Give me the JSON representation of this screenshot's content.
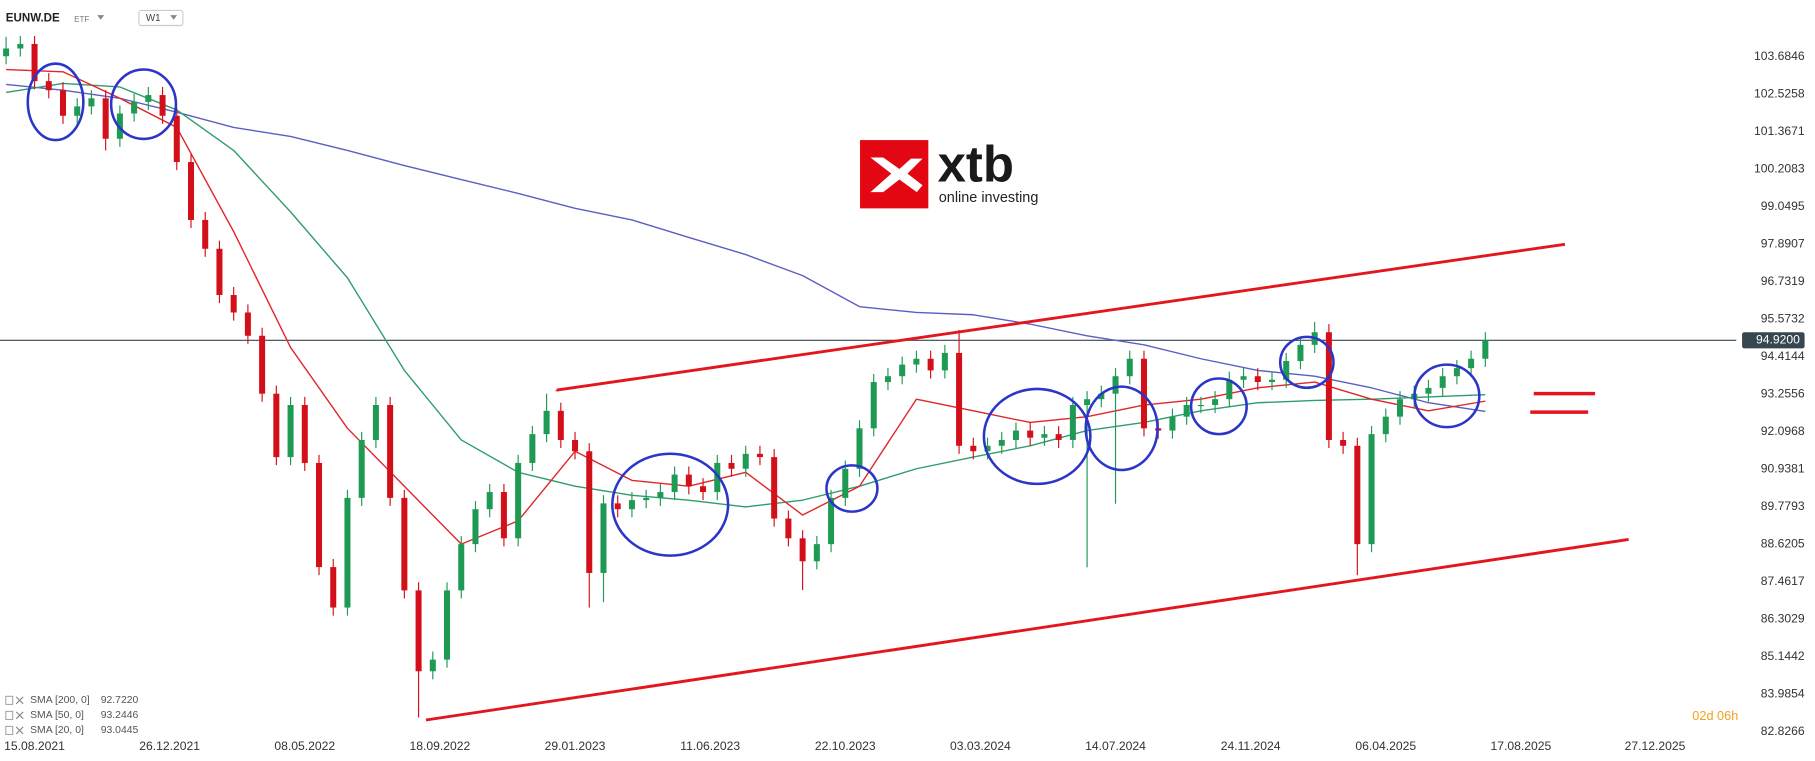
{
  "chart_data": {
    "type": "candlestick",
    "symbol": "EUNW.DE",
    "instrument_type": "ETF",
    "timeframe": "W1",
    "up_color": "#1e9a55",
    "down_color": "#d3101a",
    "x": [
      "18.07.2021",
      "01.08.2021",
      "15.08.2021",
      "29.08.2021",
      "12.09.2021",
      "26.09.2021",
      "10.10.2021",
      "24.10.2021",
      "07.11.2021",
      "21.11.2021",
      "05.12.2021",
      "19.12.2021",
      "02.01.2022",
      "16.01.2022",
      "30.01.2022",
      "13.02.2022",
      "27.02.2022",
      "13.03.2022",
      "27.03.2022",
      "10.04.2022",
      "24.04.2022",
      "08.05.2022",
      "22.05.2022",
      "05.06.2022",
      "19.06.2022",
      "03.07.2022",
      "17.07.2022",
      "31.07.2022",
      "14.08.2022",
      "28.08.2022",
      "11.09.2022",
      "25.09.2022",
      "09.10.2022",
      "23.10.2022",
      "06.11.2022",
      "20.11.2022",
      "04.12.2022",
      "18.12.2022",
      "01.01.2023",
      "15.01.2023",
      "29.01.2023",
      "12.02.2023",
      "26.02.2023",
      "12.03.2023",
      "26.03.2023",
      "09.04.2023",
      "23.04.2023",
      "07.05.2023",
      "21.05.2023",
      "04.06.2023",
      "18.06.2023",
      "02.07.2023",
      "16.07.2023",
      "30.07.2023",
      "13.08.2023",
      "27.08.2023",
      "10.09.2023",
      "24.09.2023",
      "08.10.2023",
      "22.10.2023",
      "05.11.2023",
      "19.11.2023",
      "03.12.2023",
      "17.12.2023",
      "31.12.2023",
      "14.01.2024",
      "28.01.2024",
      "11.02.2024",
      "25.02.2024",
      "10.03.2024",
      "24.03.2024",
      "07.04.2024",
      "21.04.2024",
      "05.05.2024",
      "19.05.2024",
      "02.06.2024",
      "16.06.2024",
      "30.06.2024",
      "14.07.2024",
      "28.07.2024",
      "11.08.2024",
      "25.08.2024",
      "08.09.2024",
      "22.09.2024",
      "06.10.2024",
      "20.10.2024",
      "03.11.2024",
      "17.11.2024",
      "01.12.2024",
      "15.12.2024",
      "29.12.2024",
      "12.01.2025",
      "26.01.2025",
      "09.02.2025",
      "23.02.2025",
      "09.03.2025",
      "23.03.2025",
      "06.04.2025",
      "20.04.2025",
      "04.05.2025",
      "18.05.2025",
      "01.06.2025",
      "15.06.2025",
      "29.06.2025",
      "13.07.2025"
    ],
    "open": [
      103.7,
      103.94,
      104.08,
      102.93,
      102.65,
      101.86,
      102.15,
      102.4,
      101.15,
      101.93,
      102.29,
      102.5,
      101.86,
      100.43,
      98.64,
      97.75,
      96.32,
      95.78,
      95.06,
      93.27,
      91.31,
      92.92,
      91.13,
      87.91,
      86.66,
      90.05,
      91.84,
      92.92,
      90.05,
      87.19,
      84.69,
      85.05,
      87.19,
      88.62,
      89.7,
      90.23,
      88.8,
      91.13,
      92.02,
      92.74,
      91.84,
      91.49,
      87.73,
      89.88,
      89.7,
      89.98,
      90.05,
      90.23,
      90.77,
      90.41,
      90.23,
      91.13,
      90.95,
      91.41,
      91.31,
      89.41,
      88.8,
      88.09,
      88.62,
      90.05,
      90.95,
      92.2,
      93.63,
      93.81,
      94.17,
      94.35,
      93.99,
      94.53,
      91.66,
      91.49,
      91.66,
      91.84,
      92.13,
      91.91,
      92.02,
      91.84,
      92.92,
      93.1,
      93.27,
      93.81,
      94.35,
      92.2,
      92.13,
      92.56,
      92.92,
      92.92,
      93.1,
      93.7,
      93.81,
      93.63,
      93.7,
      94.28,
      94.78,
      95.17,
      91.84,
      91.66,
      88.62,
      92.02,
      92.56,
      93.1,
      93.27,
      93.45,
      93.81,
      94.06,
      94.35
    ],
    "high": [
      104.3,
      104.33,
      104.33,
      103.18,
      102.9,
      102.4,
      102.65,
      102.65,
      102.18,
      102.54,
      102.75,
      102.75,
      102.11,
      100.68,
      98.89,
      98.0,
      96.57,
      96.03,
      95.31,
      93.52,
      93.17,
      93.17,
      91.38,
      88.16,
      90.3,
      92.09,
      93.17,
      93.17,
      90.3,
      87.44,
      85.3,
      87.44,
      88.87,
      89.95,
      90.48,
      90.48,
      91.38,
      92.27,
      93.27,
      92.99,
      92.09,
      91.74,
      90.13,
      90.13,
      90.23,
      90.3,
      90.48,
      91.02,
      91.02,
      90.66,
      91.38,
      91.38,
      91.66,
      91.66,
      91.56,
      89.66,
      89.05,
      88.87,
      90.3,
      91.2,
      92.45,
      93.88,
      94.06,
      94.42,
      94.6,
      94.6,
      94.78,
      95.24,
      91.91,
      91.91,
      92.09,
      92.38,
      92.38,
      92.27,
      92.27,
      93.17,
      93.35,
      93.52,
      94.06,
      94.6,
      94.6,
      92.45,
      92.81,
      93.17,
      93.17,
      93.35,
      93.95,
      94.06,
      94.06,
      93.95,
      94.53,
      95.03,
      95.49,
      95.42,
      92.09,
      91.91,
      92.27,
      92.81,
      93.35,
      93.52,
      93.7,
      94.06,
      94.31,
      94.6,
      95.17
    ],
    "low": [
      103.45,
      103.69,
      102.68,
      102.4,
      101.61,
      101.61,
      101.9,
      100.79,
      100.9,
      101.68,
      102.04,
      101.61,
      100.18,
      98.39,
      97.5,
      96.07,
      95.53,
      94.81,
      93.02,
      91.06,
      91.06,
      90.88,
      87.66,
      86.41,
      86.41,
      89.8,
      91.59,
      89.8,
      86.94,
      83.26,
      84.44,
      84.8,
      86.94,
      88.37,
      89.45,
      88.55,
      88.55,
      90.88,
      91.77,
      91.59,
      91.24,
      86.66,
      86.83,
      89.45,
      89.45,
      89.73,
      89.8,
      89.98,
      90.16,
      89.98,
      89.98,
      90.7,
      90.7,
      91.06,
      89.16,
      88.55,
      87.2,
      87.84,
      88.37,
      89.8,
      90.7,
      91.95,
      93.38,
      93.56,
      93.92,
      93.74,
      93.74,
      91.41,
      91.24,
      91.24,
      91.41,
      91.59,
      91.66,
      91.66,
      91.59,
      91.59,
      87.9,
      92.85,
      89.87,
      93.56,
      91.95,
      91.88,
      91.88,
      92.31,
      92.67,
      92.67,
      92.85,
      93.45,
      93.38,
      93.38,
      93.45,
      94.03,
      94.53,
      91.59,
      91.41,
      87.66,
      88.37,
      91.77,
      92.31,
      92.85,
      93.02,
      93.2,
      93.56,
      93.81,
      94.1
    ],
    "close": [
      103.94,
      104.08,
      102.93,
      102.65,
      101.86,
      102.15,
      102.4,
      101.15,
      101.93,
      102.29,
      102.5,
      101.86,
      100.43,
      98.64,
      97.75,
      96.32,
      95.78,
      95.06,
      93.27,
      91.31,
      92.92,
      91.13,
      87.91,
      86.66,
      90.05,
      91.84,
      92.92,
      90.05,
      87.19,
      84.69,
      85.05,
      87.19,
      88.62,
      89.7,
      90.23,
      88.8,
      91.13,
      92.02,
      92.74,
      91.84,
      91.49,
      87.73,
      89.88,
      89.7,
      89.98,
      90.05,
      90.23,
      90.77,
      90.41,
      90.23,
      91.13,
      90.95,
      91.41,
      91.31,
      89.41,
      88.8,
      88.09,
      88.62,
      90.05,
      90.95,
      92.2,
      93.63,
      93.81,
      94.17,
      94.35,
      93.99,
      94.53,
      91.66,
      91.49,
      91.66,
      91.84,
      92.13,
      91.91,
      92.02,
      91.84,
      92.92,
      93.1,
      93.27,
      93.81,
      94.35,
      92.2,
      92.13,
      92.56,
      92.92,
      92.92,
      93.1,
      93.7,
      93.81,
      93.63,
      93.7,
      94.28,
      94.78,
      95.17,
      91.84,
      91.66,
      88.62,
      92.02,
      92.56,
      93.1,
      93.27,
      93.45,
      93.81,
      94.06,
      94.35,
      94.92
    ],
    "series": [
      {
        "name": "SMA [200, 0]",
        "type": "line",
        "color": "#5a5fc4",
        "legend_value": {
          "value": 92.722,
          "label": "92.7220"
        },
        "x": [
          "18.07.2021",
          "12.09.2021",
          "07.11.2021",
          "02.01.2022",
          "27.02.2022",
          "24.04.2022",
          "19.06.2022",
          "14.08.2022",
          "09.10.2022",
          "04.12.2022",
          "29.01.2023",
          "26.03.2023",
          "21.05.2023",
          "16.07.2023",
          "10.09.2023",
          "05.11.2023",
          "31.12.2023",
          "25.02.2024",
          "21.04.2024",
          "16.06.2024",
          "11.08.2024",
          "06.10.2024",
          "01.12.2024",
          "26.01.2025",
          "23.03.2025",
          "18.05.2025",
          "13.07.2025"
        ],
        "values": [
          102.83,
          102.65,
          102.4,
          101.97,
          101.5,
          101.22,
          100.79,
          100.32,
          99.89,
          99.46,
          99.0,
          98.64,
          98.1,
          97.57,
          96.92,
          95.96,
          95.78,
          95.71,
          95.42,
          95.06,
          94.78,
          94.35,
          93.99,
          93.81,
          93.45,
          92.99,
          92.72
        ]
      },
      {
        "name": "SMA [50, 0]",
        "type": "line",
        "color": "#2f9d6b",
        "legend_value": 93.2446,
        "x": [
          "18.07.2021",
          "12.09.2021",
          "07.11.2021",
          "02.01.2022",
          "27.02.2022",
          "24.04.2022",
          "19.06.2022",
          "14.08.2022",
          "09.10.2022",
          "04.12.2022",
          "29.01.2023",
          "26.03.2023",
          "21.05.2023",
          "16.07.2023",
          "10.09.2023",
          "05.11.2023",
          "31.12.2023",
          "25.02.2024",
          "21.04.2024",
          "16.06.2024",
          "11.08.2024",
          "06.10.2024",
          "01.12.2024",
          "26.01.2025",
          "23.03.2025",
          "18.05.2025",
          "13.07.2025"
        ],
        "values": [
          102.58,
          102.86,
          102.75,
          102.04,
          100.79,
          98.89,
          96.85,
          93.99,
          91.84,
          90.84,
          90.41,
          90.13,
          89.98,
          89.77,
          89.98,
          90.41,
          90.95,
          91.31,
          91.66,
          92.13,
          92.38,
          92.74,
          92.99,
          93.06,
          93.1,
          93.17,
          93.24
        ]
      },
      {
        "name": "SMA [20, 0]",
        "type": "line",
        "color": "#e0262b",
        "legend_value": 93.0445,
        "x": [
          "18.07.2021",
          "12.09.2021",
          "07.11.2021",
          "02.01.2022",
          "27.02.2022",
          "24.04.2022",
          "19.06.2022",
          "14.08.2022",
          "09.10.2022",
          "04.12.2022",
          "29.01.2023",
          "26.03.2023",
          "21.05.2023",
          "16.07.2023",
          "10.09.2023",
          "05.11.2023",
          "31.12.2023",
          "25.02.2024",
          "21.04.2024",
          "16.06.2024",
          "11.08.2024",
          "06.10.2024",
          "01.12.2024",
          "26.01.2025",
          "23.03.2025",
          "18.05.2025",
          "13.07.2025"
        ],
        "values": [
          103.29,
          103.22,
          102.4,
          101.5,
          98.28,
          94.7,
          92.2,
          90.41,
          88.62,
          89.34,
          91.49,
          90.59,
          90.41,
          90.84,
          89.52,
          90.41,
          93.1,
          92.74,
          92.38,
          92.56,
          92.92,
          93.1,
          93.45,
          93.63,
          93.1,
          92.74,
          93.04
        ]
      }
    ],
    "last_price": {
      "value": 94.92,
      "label": "94.9200"
    },
    "last_price_color": "#37474f",
    "ylim": [
      82.683,
      105.438
    ],
    "yticks": [
      103.6846,
      102.5258,
      101.3671,
      100.2083,
      99.0495,
      97.8907,
      96.7319,
      95.5732,
      94.4144,
      93.2556,
      92.0968,
      90.9381,
      89.7793,
      88.6205,
      87.4617,
      86.3029,
      85.1442,
      83.9854,
      82.8266
    ],
    "xlim": [
      "12.07.2021",
      "17.03.2026"
    ],
    "xticks": [
      "15.08.2021",
      "26.12.2021",
      "08.05.2022",
      "18.09.2022",
      "29.01.2023",
      "11.06.2023",
      "22.10.2023",
      "03.03.2024",
      "14.07.2024",
      "24.11.2024",
      "06.04.2025",
      "17.08.2025",
      "27.12.2025"
    ],
    "countdown": "02d 06h"
  },
  "logo": {
    "brand": "xtb",
    "tagline": "online investing"
  }
}
